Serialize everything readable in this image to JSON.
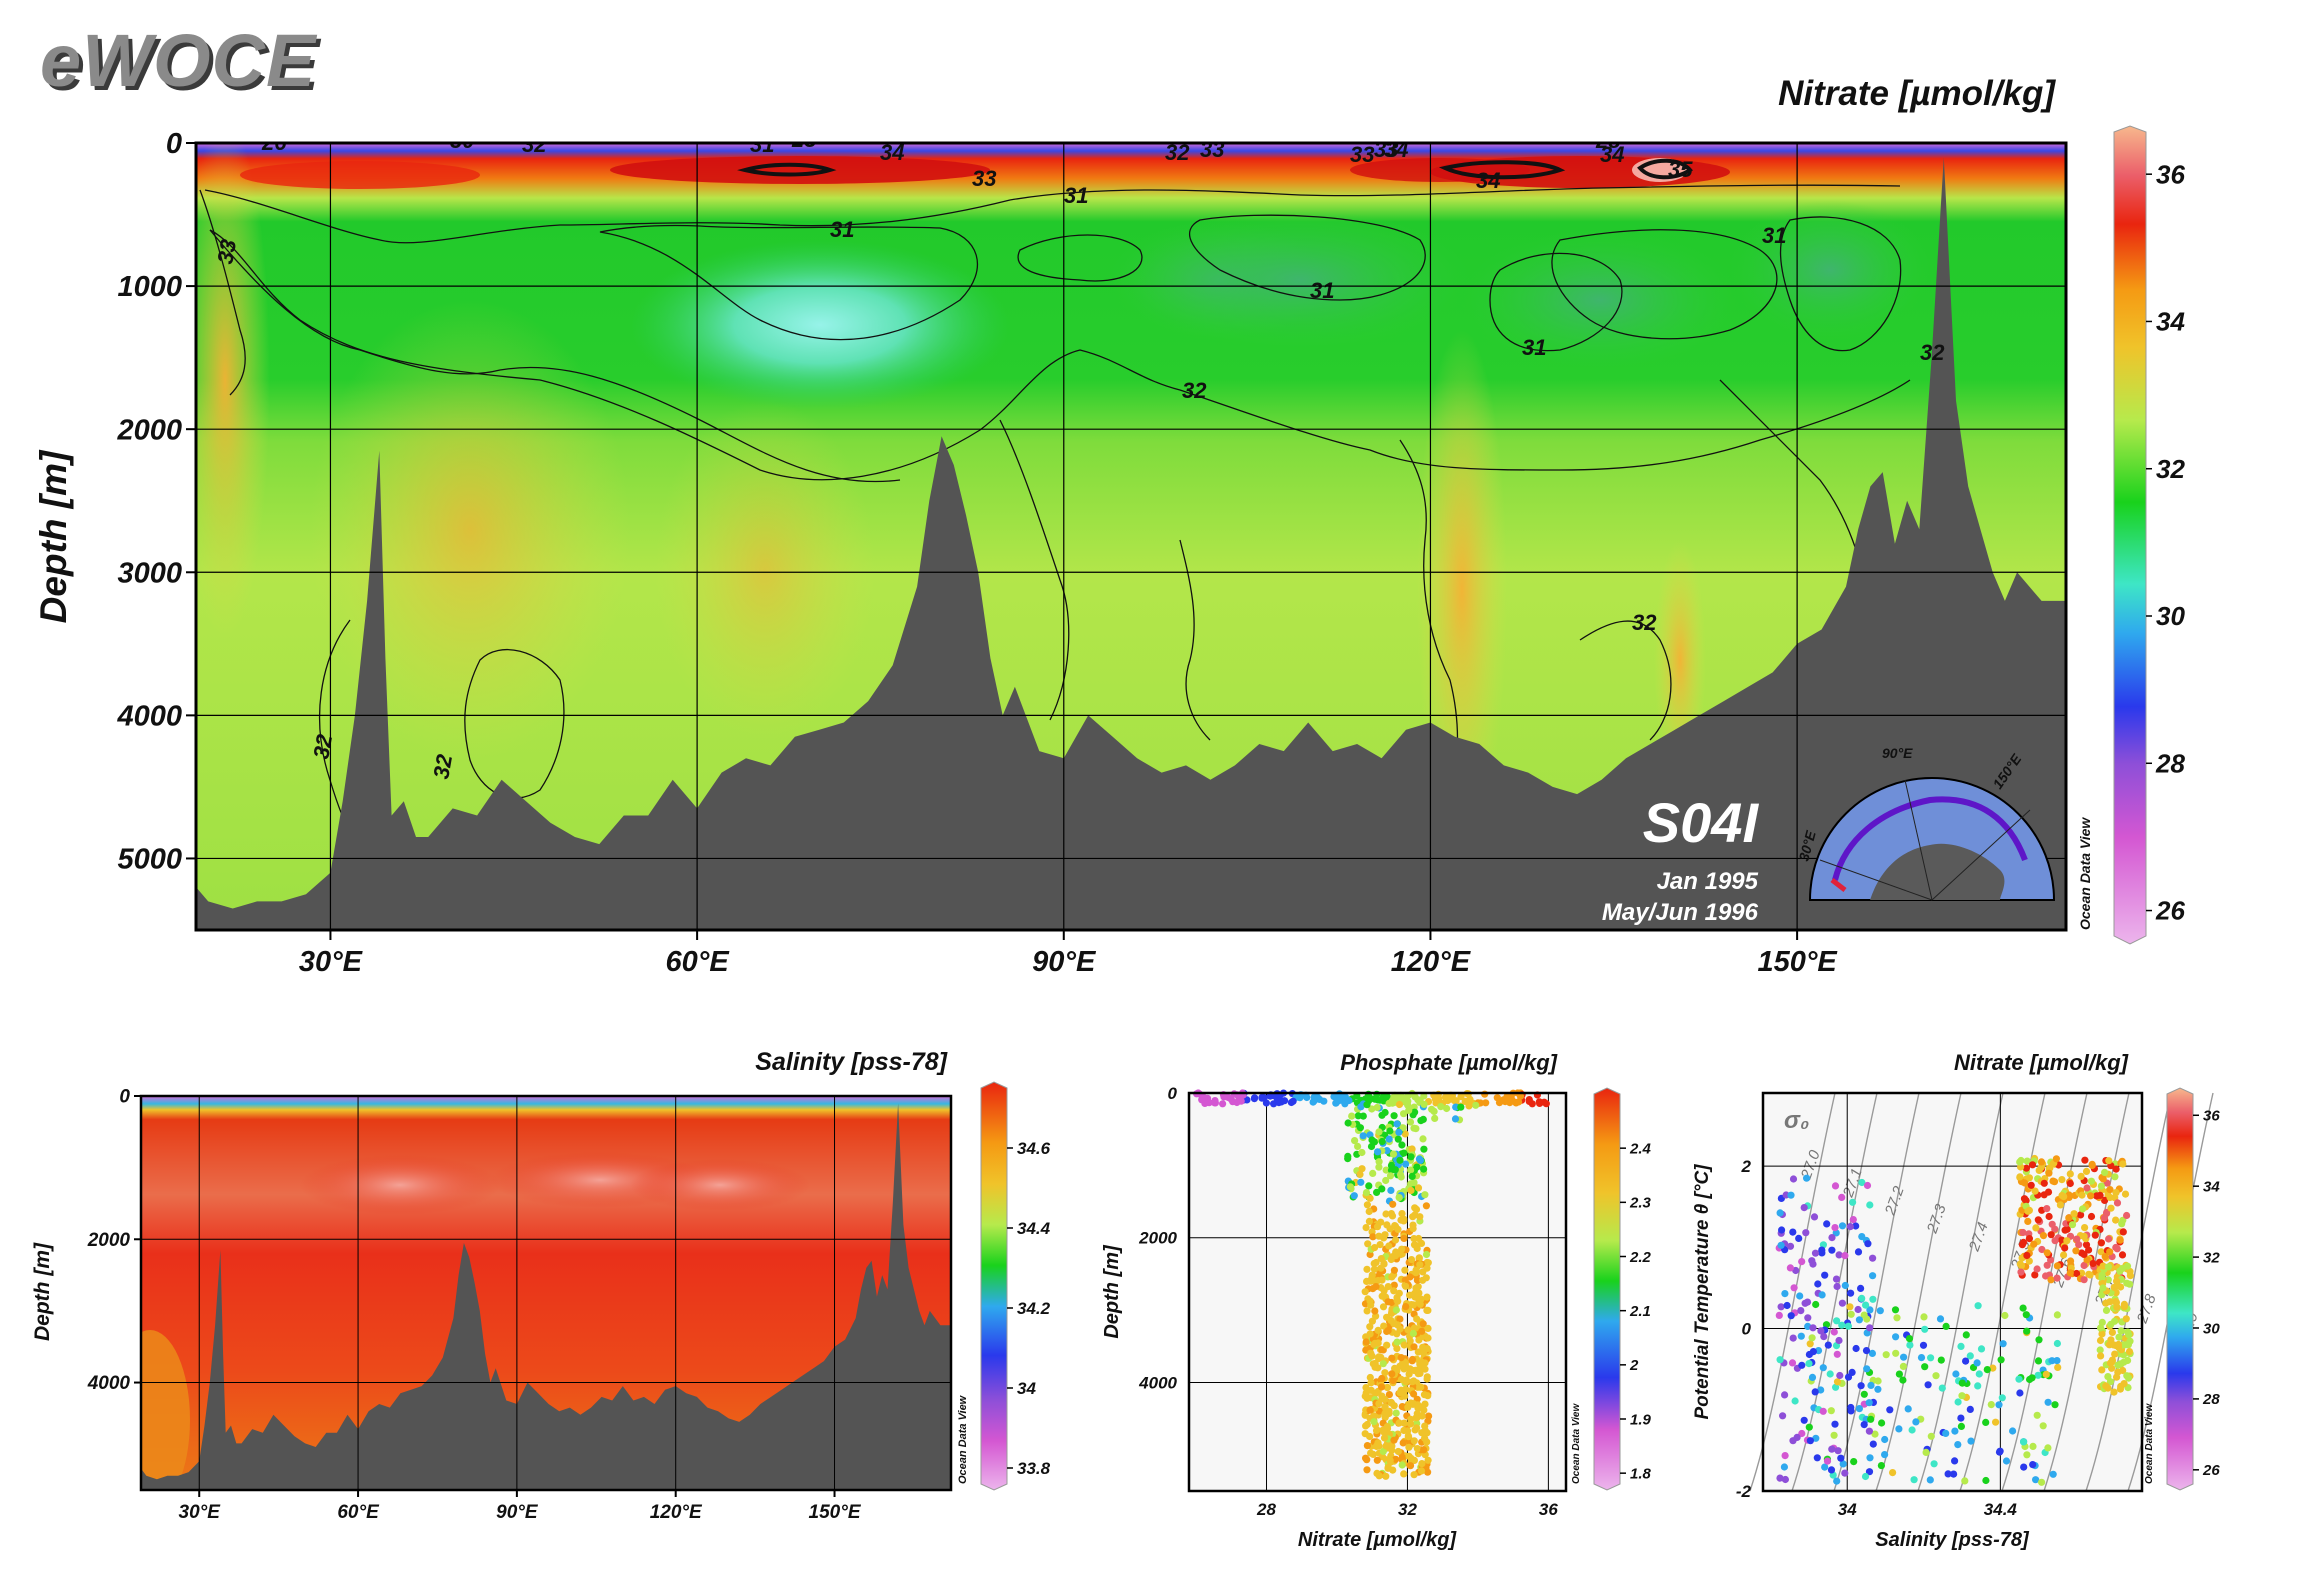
{
  "brand": {
    "logo": "eWOCE"
  },
  "colors": {
    "bathymetry": "#545454",
    "frame": "#000000",
    "grid": "#000000",
    "plot_bg": "#f7f7f7"
  },
  "chart_data": [
    {
      "id": "main_section",
      "type": "heatmap",
      "title": "Nitrate [µmol/kg]",
      "xlabel": "",
      "ylabel": "Depth [m]",
      "x_ticks": [
        "30°E",
        "60°E",
        "90°E",
        "120°E",
        "150°E"
      ],
      "x_tick_values": [
        30,
        60,
        90,
        120,
        150
      ],
      "y_ticks": [
        "0",
        "1000",
        "2000",
        "3000",
        "4000",
        "5000"
      ],
      "y_tick_values": [
        0,
        1000,
        2000,
        3000,
        4000,
        5000
      ],
      "xlim": [
        19,
        172
      ],
      "ylim": [
        0,
        5500
      ],
      "colorbar": {
        "ticks": [
          "36",
          "34",
          "32",
          "30",
          "28",
          "26"
        ],
        "tick_values": [
          36,
          34,
          32,
          30,
          28,
          26
        ],
        "range": [
          25.6,
          36.6
        ]
      },
      "contour_labels": [
        "26",
        "30",
        "32",
        "26",
        "31",
        "28",
        "34",
        "33",
        "32",
        "33",
        "33",
        "33",
        "34",
        "28",
        "34",
        "26",
        "35",
        "26",
        "34",
        "31",
        "31",
        "31",
        "31",
        "31",
        "33",
        "32",
        "32",
        "32",
        "32",
        "32"
      ],
      "section_label": "S04I",
      "cruise_dates": [
        "Jan 1995",
        "May/Jun 1996"
      ],
      "inset_map_labels": [
        "90°E",
        "150°E",
        "30°E"
      ],
      "watermark": "Ocean Data View",
      "grid": true,
      "legend": "right",
      "bathymetry_depth": {
        "lon": [
          19,
          20,
          22,
          24,
          26,
          28,
          30,
          31,
          32,
          33,
          34,
          34.5,
          35,
          36,
          37,
          38,
          40,
          42,
          44,
          46,
          48,
          50,
          52,
          54,
          56,
          58,
          60,
          62,
          64,
          66,
          68,
          70,
          72,
          74,
          76,
          78,
          79,
          80,
          81,
          82,
          83,
          84,
          85,
          86,
          88,
          90,
          92,
          94,
          96,
          98,
          100,
          102,
          104,
          106,
          108,
          110,
          112,
          114,
          116,
          118,
          120,
          122,
          124,
          126,
          128,
          130,
          132,
          134,
          136,
          138,
          140,
          142,
          144,
          146,
          148,
          150,
          152,
          154,
          155,
          156,
          157,
          158,
          159,
          160,
          161,
          162,
          163,
          164,
          165,
          166,
          167,
          168,
          170,
          172
        ],
        "depth": [
          5200,
          5300,
          5350,
          5300,
          5300,
          5250,
          5100,
          4600,
          4000,
          3200,
          2150,
          3600,
          4700,
          4600,
          4850,
          4850,
          4650,
          4700,
          4450,
          4600,
          4750,
          4850,
          4900,
          4700,
          4700,
          4450,
          4650,
          4400,
          4300,
          4350,
          4150,
          4100,
          4050,
          3900,
          3650,
          3100,
          2500,
          2050,
          2250,
          2600,
          3000,
          3600,
          4000,
          3800,
          4250,
          4300,
          4000,
          4150,
          4300,
          4400,
          4350,
          4450,
          4350,
          4200,
          4250,
          4050,
          4250,
          4200,
          4300,
          4100,
          4050,
          4150,
          4200,
          4350,
          4400,
          4500,
          4550,
          4450,
          4300,
          4200,
          4100,
          4000,
          3900,
          3800,
          3700,
          3500,
          3400,
          3100,
          2700,
          2400,
          2300,
          2800,
          2500,
          2700,
          1500,
          100,
          1800,
          2400,
          2700,
          3000,
          3200,
          3000,
          3200,
          3200
        ]
      }
    },
    {
      "id": "salinity_section",
      "type": "heatmap",
      "title": "Salinity [pss-78]",
      "ylabel": "Depth [m]",
      "x_ticks": [
        "30°E",
        "60°E",
        "90°E",
        "120°E",
        "150°E"
      ],
      "x_tick_values": [
        30,
        60,
        90,
        120,
        150
      ],
      "y_ticks": [
        "0",
        "2000",
        "4000"
      ],
      "y_tick_values": [
        0,
        2000,
        4000
      ],
      "xlim": [
        19,
        172
      ],
      "ylim": [
        0,
        5500
      ],
      "colorbar": {
        "ticks": [
          "34.6",
          "34.4",
          "34.2",
          "34",
          "33.8"
        ],
        "tick_values": [
          34.6,
          34.4,
          34.2,
          34.0,
          33.8
        ],
        "range": [
          33.75,
          34.75
        ]
      },
      "watermark": "Ocean Data View"
    },
    {
      "id": "phosphate_profile",
      "type": "scatter",
      "title": "Phosphate [µmol/kg]",
      "xlabel": "Nitrate [µmol/kg]",
      "ylabel": "Depth [m]",
      "x_ticks": [
        "28",
        "32",
        "36"
      ],
      "x_tick_values": [
        28,
        32,
        36
      ],
      "y_ticks": [
        "0",
        "2000",
        "4000"
      ],
      "y_tick_values": [
        0,
        2000,
        4000
      ],
      "xlim": [
        25.8,
        36.5
      ],
      "ylim": [
        0,
        5500
      ],
      "colorbar": {
        "ticks": [
          "2.4",
          "2.3",
          "2.2",
          "2.1",
          "2",
          "1.9",
          "1.8"
        ],
        "tick_values": [
          2.4,
          2.3,
          2.2,
          2.1,
          2.0,
          1.9,
          1.8
        ],
        "range": [
          1.78,
          2.5
        ]
      },
      "watermark": "Ocean Data View"
    },
    {
      "id": "ts_diagram",
      "type": "scatter",
      "title": "Nitrate [µmol/kg]",
      "xlabel": "Salinity [pss-78]",
      "ylabel": "Potential Temperature θ [°C]",
      "x_ticks": [
        "34",
        "34.4"
      ],
      "x_tick_values": [
        34.0,
        34.4
      ],
      "y_ticks": [
        "2",
        "0",
        "-2"
      ],
      "y_tick_values": [
        2,
        0,
        -2
      ],
      "xlim": [
        33.78,
        34.77
      ],
      "ylim": [
        -2.0,
        2.9
      ],
      "isopycnal_labels": [
        "27.0",
        "27.1",
        "27.2",
        "27.3",
        "27.4",
        "27.5",
        "27.6",
        "27.7",
        "27.8",
        "27.9"
      ],
      "sigma_symbol": "σ₀",
      "colorbar": {
        "ticks": [
          "36",
          "34",
          "32",
          "30",
          "28",
          "26"
        ],
        "tick_values": [
          36,
          34,
          32,
          30,
          28,
          26
        ],
        "range": [
          25.6,
          36.6
        ]
      },
      "watermark": "Ocean Data View"
    }
  ]
}
